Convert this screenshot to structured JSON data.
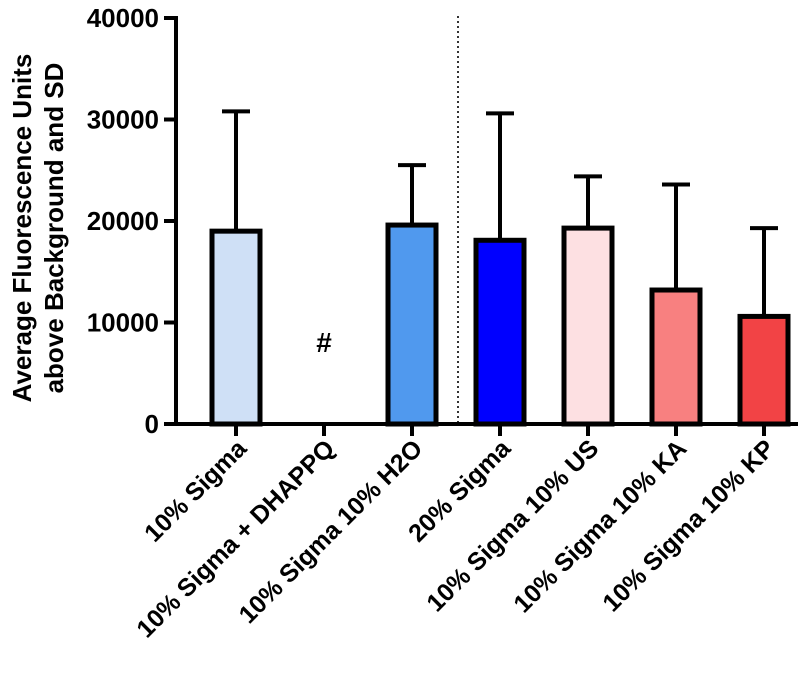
{
  "chart_data": {
    "type": "bar",
    "ylabel_line1": "Average Fluorescence Units",
    "ylabel_line2": "above Background and SD",
    "xlabel": "",
    "ylim": [
      0,
      40000
    ],
    "yticks": [
      0,
      10000,
      20000,
      30000,
      40000
    ],
    "categories": [
      "10% Sigma",
      "10% Sigma + DHAPPQ",
      "10% Sigma 10% H2O",
      "20% Sigma",
      "10% Sigma 10% US",
      "10% Sigma 10% KA",
      "10% Sigma 10% KP"
    ],
    "values": [
      19000,
      null,
      19600,
      18100,
      19300,
      13200,
      10600
    ],
    "error_upper": [
      30800,
      null,
      25500,
      30600,
      24400,
      23600,
      19300
    ],
    "colors": [
      "#cfe0f6",
      null,
      "#5099ee",
      "#0000ff",
      "#fde0e2",
      "#f88080",
      "#f24345"
    ],
    "annotations": [
      {
        "category": "10% Sigma + DHAPPQ",
        "text": "#"
      }
    ],
    "divider_after": "10% Sigma 10% H2O",
    "grid": false,
    "legend": "none"
  }
}
